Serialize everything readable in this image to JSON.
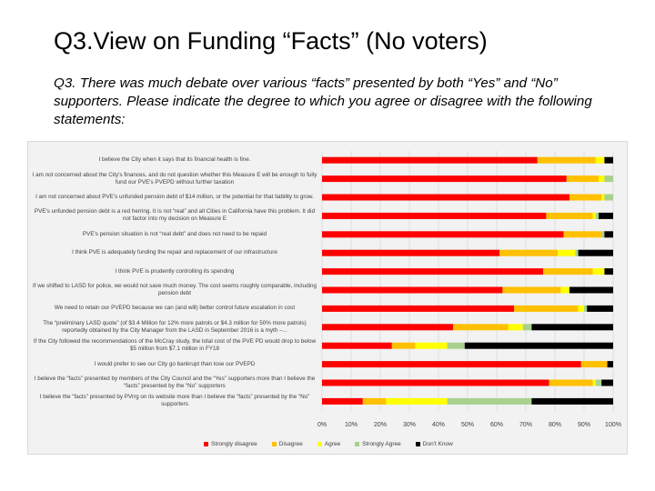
{
  "slide": {
    "title": "Q3.View on Funding “Facts” (No voters)",
    "subtitle": "Q3. There was much debate over various “facts” presented by both “Yes” and “No” supporters. Please indicate the degree to which you agree or disagree with the following statements:"
  },
  "chart_data": {
    "type": "bar",
    "orientation": "horizontal",
    "stacked": "percent",
    "categories": [
      "I believe the City when it says that its financial health is fine.",
      "I am not concerned about the City's finances, and do not question whether this Measure E will be enough to fully fund our PVE's PVEPD without further taxation",
      "I am not concerned about PVE's unfunded pension debt of $14 million, or the potential for that liability to grow.",
      "PVE's unfunded pension debt is a red herring. It is not “real” and all Cities in California have this problem. It did not factor into my decision on Measure E",
      "PVE's pension situation is not “real debt” and does not need to be repaid",
      "I think PVE is adequately funding the repair and replacement of our infrastructure",
      "I think PVE is prudently controlling its spending",
      "If we shifted to LASD for police, we would not save much money. The cost seems roughly comparable, including pension debt",
      "We need to retain our PVEPD because we can (and will) better control future escalation in cost",
      "The “preliminary LASD quote” (of $3.4 Million for 12% more patrols or $4.3 million for 50% more patrols) reportedly obtained by the City Manager from the LASD in September 2016 is a myth –...",
      "If the City followed the recommendations of the McCray study, the total cost of the PVE PD would drop to below $5 million from $7.1 million in FY18",
      "I would prefer to see our City go bankrupt than lose our PVEPD",
      "I believe the “facts” presented by members of the City Council and the “Yes” supporters more than I believe the “facts” presented by the “No” supporters",
      "I believe the “facts” presented by PVrrg on its website more than I believe the “facts” presented by the “No” supporters"
    ],
    "series": [
      {
        "name": "Strongly disagree",
        "color": "#ff0000",
        "values": [
          74,
          84,
          85,
          77,
          83,
          61,
          76,
          62,
          66,
          45,
          24,
          89,
          78,
          14
        ]
      },
      {
        "name": "Disagree",
        "color": "#ffc000",
        "values": [
          20,
          11,
          11,
          16,
          13,
          20,
          17,
          20,
          22,
          19,
          8,
          9,
          15,
          8
        ]
      },
      {
        "name": "Agree",
        "color": "#ffff00",
        "values": [
          3,
          2,
          1,
          1,
          0,
          6,
          4,
          3,
          2,
          5,
          11,
          0,
          1,
          21
        ]
      },
      {
        "name": "Strongly Agree",
        "color": "#a9d18e",
        "values": [
          0,
          3,
          3,
          1,
          1,
          1,
          0,
          0,
          1,
          3,
          6,
          0,
          2,
          29
        ]
      },
      {
        "name": "Don't Know",
        "color": "#000000",
        "values": [
          3,
          0,
          0,
          5,
          3,
          12,
          3,
          15,
          9,
          28,
          51,
          2,
          4,
          28
        ]
      }
    ],
    "xlim": [
      0,
      100
    ],
    "xticks": [
      "0%",
      "10%",
      "20%",
      "30%",
      "40%",
      "50%",
      "60%",
      "70%",
      "80%",
      "90%",
      "100%"
    ],
    "grid": true,
    "legend": "bottom"
  }
}
